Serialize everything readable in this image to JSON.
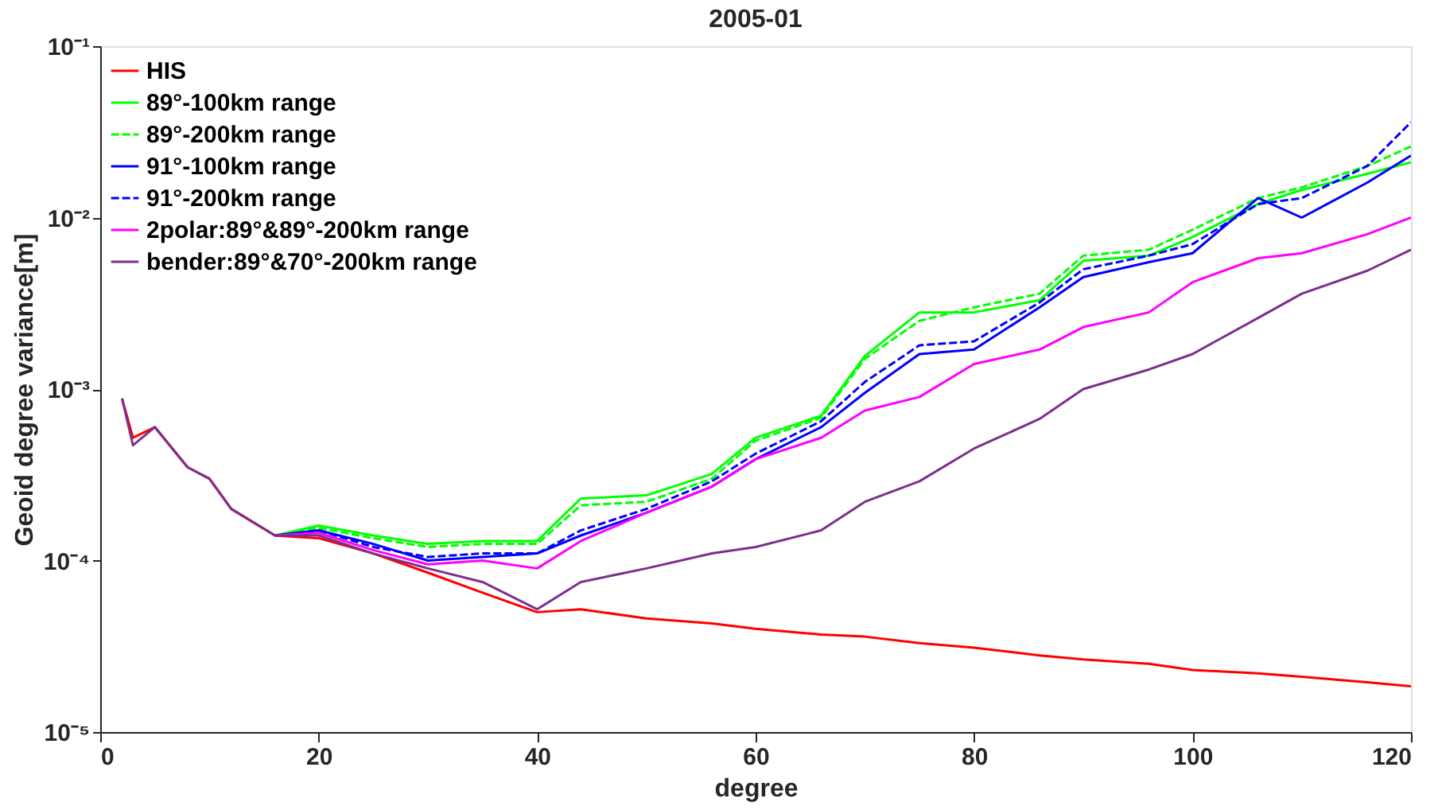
{
  "chart_data": {
    "type": "line",
    "title": "2005-01",
    "xlabel": "degree",
    "ylabel": "Geoid degree variance[m]",
    "log": true,
    "grid": false,
    "legend": "top left",
    "marker": "none",
    "x": [
      2,
      3,
      5,
      8,
      10,
      12,
      16,
      20,
      25,
      30,
      35,
      40,
      44,
      50,
      56,
      60,
      66,
      70,
      75,
      80,
      86,
      90,
      96,
      100,
      106,
      110,
      116,
      120
    ],
    "xlim": [
      0,
      120
    ],
    "xticks": [
      0,
      20,
      40,
      60,
      80,
      100,
      120
    ],
    "ylim": [
      1e-05,
      0.1
    ],
    "yticks": [
      {
        "value": 1e-05,
        "label": "10⁻⁵"
      },
      {
        "value": 0.0001,
        "label": "10⁻⁴"
      },
      {
        "value": 0.001,
        "label": "10⁻³"
      },
      {
        "value": 0.01,
        "label": "10⁻²"
      },
      {
        "value": 0.1,
        "label": "10⁻¹"
      }
    ],
    "series": [
      {
        "name": "HIS",
        "color": "#ff0000",
        "line_style": "solid",
        "values": [
          0.00088,
          0.00052,
          0.0006,
          0.00035,
          0.0003,
          0.0002,
          0.00014,
          0.000135,
          0.00011,
          8.5e-05,
          6.5e-05,
          5e-05,
          5.2e-05,
          4.6e-05,
          4.3e-05,
          4e-05,
          3.7e-05,
          3.6e-05,
          3.3e-05,
          3.1e-05,
          2.8e-05,
          2.65e-05,
          2.5e-05,
          2.3e-05,
          2.2e-05,
          2.1e-05,
          1.95e-05,
          1.85e-05
        ]
      },
      {
        "name": "89°-100km range",
        "color": "#00ff00",
        "line_style": "solid",
        "values": [
          null,
          null,
          null,
          null,
          null,
          null,
          0.00014,
          0.00016,
          0.00014,
          0.000125,
          0.00013,
          0.00013,
          0.00023,
          0.00024,
          0.00032,
          0.00052,
          0.0007,
          0.00156,
          0.0028,
          0.0028,
          0.0033,
          0.0056,
          0.006,
          0.0077,
          0.012,
          0.0145,
          0.018,
          0.021
        ]
      },
      {
        "name": "89°-200km range",
        "color": "#00ff00",
        "line_style": "dashed",
        "values": [
          null,
          null,
          null,
          null,
          null,
          null,
          0.00014,
          0.000155,
          0.000135,
          0.00012,
          0.000125,
          0.000125,
          0.00021,
          0.00022,
          0.0003,
          0.0005,
          0.00068,
          0.0015,
          0.0025,
          0.003,
          0.0036,
          0.006,
          0.0065,
          0.0085,
          0.013,
          0.015,
          0.02,
          0.026
        ]
      },
      {
        "name": "91°-100km range",
        "color": "#0000ff",
        "line_style": "solid",
        "values": [
          null,
          null,
          null,
          null,
          null,
          null,
          0.00014,
          0.00015,
          0.000125,
          0.0001,
          0.000105,
          0.00011,
          0.00014,
          0.00019,
          0.00027,
          0.00039,
          0.0006,
          0.00095,
          0.0016,
          0.0017,
          0.003,
          0.0045,
          0.0055,
          0.0062,
          0.013,
          0.01,
          0.016,
          0.023
        ]
      },
      {
        "name": "91°-200km range",
        "color": "#0000ff",
        "line_style": "dashed",
        "values": [
          null,
          null,
          null,
          null,
          null,
          null,
          null,
          0.00015,
          0.00012,
          0.000105,
          0.00011,
          0.00011,
          0.00015,
          0.0002,
          0.00029,
          0.00042,
          0.00065,
          0.0011,
          0.0018,
          0.0019,
          0.0032,
          0.005,
          0.006,
          0.007,
          0.012,
          0.013,
          0.02,
          0.036
        ]
      },
      {
        "name": "2polar:89°&89°-200km range",
        "color": "#ff00ff",
        "line_style": "solid",
        "values": [
          null,
          null,
          null,
          null,
          null,
          null,
          0.00014,
          0.000145,
          0.000115,
          9.5e-05,
          0.0001,
          9e-05,
          0.00013,
          0.00019,
          0.00027,
          0.00039,
          0.00052,
          0.00075,
          0.0009,
          0.0014,
          0.0017,
          0.0023,
          0.0028,
          0.0042,
          0.0058,
          0.0062,
          0.008,
          0.01
        ]
      },
      {
        "name": "bender:89°&70°-200km range",
        "color": "#7e2f8e",
        "line_style": "solid",
        "values": [
          0.00088,
          0.00047,
          0.0006,
          0.00035,
          0.0003,
          0.0002,
          0.00014,
          0.00014,
          0.00011,
          9e-05,
          7.5e-05,
          5.2e-05,
          7.5e-05,
          9e-05,
          0.00011,
          0.00012,
          0.00015,
          0.00022,
          0.00029,
          0.00045,
          0.00067,
          0.001,
          0.0013,
          0.0016,
          0.0026,
          0.0036,
          0.0049,
          0.0065
        ]
      }
    ]
  }
}
